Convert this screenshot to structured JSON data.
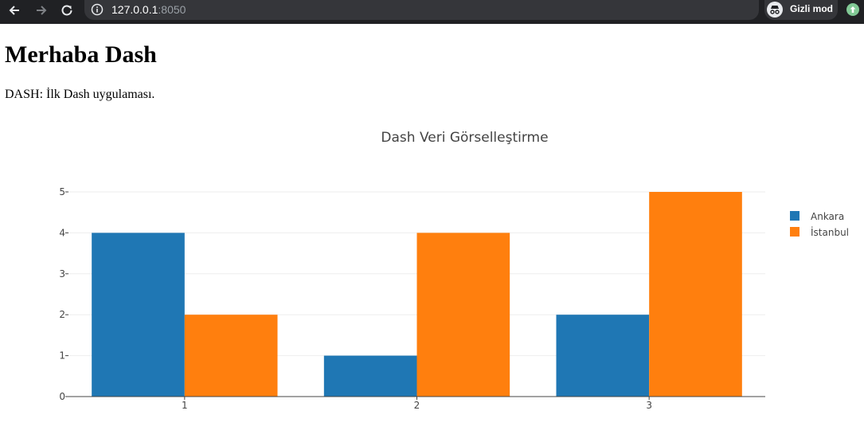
{
  "browser": {
    "address_host": "127.0.0.1",
    "address_port": ":8050",
    "profile_label": "Gizli mod"
  },
  "page": {
    "heading": "Merhaba Dash",
    "description": "DASH: İlk Dash uygulaması."
  },
  "chart_data": {
    "type": "bar",
    "title": "Dash Veri Görselleştirme",
    "categories": [
      "1",
      "2",
      "3"
    ],
    "series": [
      {
        "name": "Ankara",
        "values": [
          4,
          1,
          2
        ],
        "color": "#1f77b4"
      },
      {
        "name": "İstanbul",
        "values": [
          2,
          4,
          5
        ],
        "color": "#ff7f0e"
      }
    ],
    "ylim": [
      0,
      5
    ],
    "yticks": [
      0,
      1,
      2,
      3,
      4,
      5
    ],
    "grid": true,
    "legend": "top-right"
  }
}
